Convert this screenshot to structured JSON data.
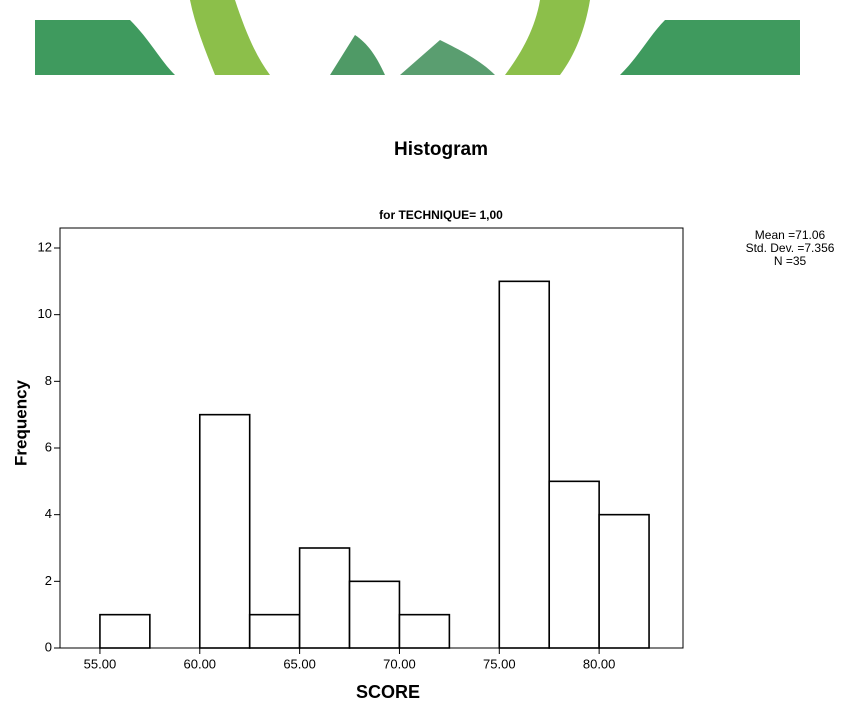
{
  "chart_data": {
    "type": "histogram",
    "title": "Histogram",
    "subtitle": "for TECHNIQUE= 1,00",
    "x_label": "SCORE",
    "y_label": "Frequency",
    "bins": [
      55,
      57.5,
      60,
      62.5,
      65,
      67.5,
      70,
      72.5,
      75,
      77.5,
      80,
      82.5
    ],
    "values": [
      1,
      0,
      7,
      1,
      3,
      2,
      1,
      0,
      11,
      5,
      4
    ],
    "color": "#ffffff",
    "xlim": [
      53,
      84.2
    ],
    "ylim": [
      0,
      12.6
    ],
    "xticks": [
      {
        "value": 55,
        "label": "55.00"
      },
      {
        "value": 60,
        "label": "60.00"
      },
      {
        "value": 65,
        "label": "65.00"
      },
      {
        "value": 70,
        "label": "70.00"
      },
      {
        "value": 75,
        "label": "75.00"
      },
      {
        "value": 80,
        "label": "80.00"
      }
    ],
    "yticks": [
      0,
      2,
      4,
      6,
      8,
      10,
      12
    ],
    "annotations": [
      "Mean =71.06",
      "Std. Dev. =7.356",
      "N =35"
    ]
  }
}
